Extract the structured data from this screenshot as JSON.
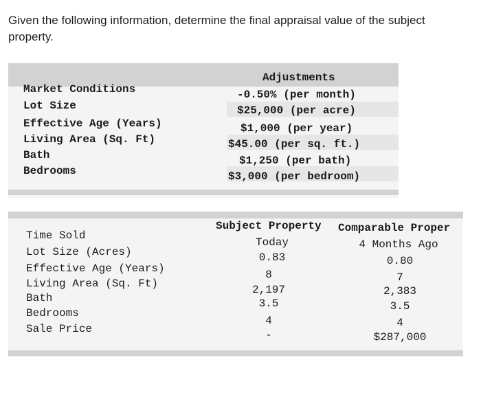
{
  "question": "Given the following information, determine the final appraisal value of the subject property.",
  "adjustments": {
    "header": "Adjustments",
    "rows": [
      {
        "label": "Market Conditions",
        "value": "-0.50% (per month)"
      },
      {
        "label": "Lot Size",
        "value": "$25,000 (per acre)"
      },
      {
        "label": "Effective Age (Years)",
        "value": "$1,000 (per year)"
      },
      {
        "label": "Living Area (Sq. Ft)",
        "value": "$45.00 (per sq. ft.)"
      },
      {
        "label": "Bath",
        "value": "$1,250 (per bath)"
      },
      {
        "label": "Bedrooms",
        "value": "$3,000 (per bedroom)"
      }
    ]
  },
  "comparison": {
    "headers": {
      "subject": "Subject Property",
      "comparable": "Comparable Proper"
    },
    "labels": [
      "Time Sold",
      "Lot Size (Acres)",
      "Effective Age (Years)",
      "Living Area (Sq. Ft)",
      "Bath",
      "Bedrooms",
      "Sale Price"
    ],
    "subject": [
      "Today",
      "0.83",
      "8",
      "2,197",
      "3.5",
      "4",
      "-"
    ],
    "comparable": [
      "4 Months Ago",
      "0.80",
      "7",
      "2,383",
      "3.5",
      "4",
      "$287,000"
    ]
  }
}
